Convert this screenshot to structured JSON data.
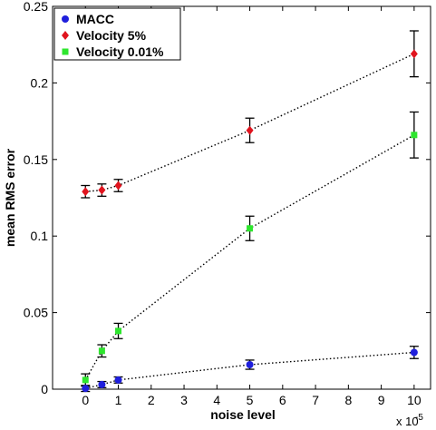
{
  "chart_data": {
    "type": "scatter",
    "xlabel": "noise level",
    "ylabel": "mean RMS error",
    "x_scale_note": "x 10",
    "x_scale_exponent": "-5",
    "xlim": [
      -1,
      10.5
    ],
    "ylim": [
      0,
      0.25
    ],
    "x_ticks": [
      0,
      1,
      2,
      3,
      4,
      5,
      6,
      7,
      8,
      9,
      10
    ],
    "x_tick_labels": [
      "0",
      "1",
      "2",
      "3",
      "4",
      "5",
      "6",
      "7",
      "8",
      "9",
      "10"
    ],
    "y_ticks": [
      0,
      0.05,
      0.1,
      0.15,
      0.2,
      0.25
    ],
    "y_tick_labels": [
      "0",
      "0.05",
      "0.1",
      "0.15",
      "0.2",
      "0.25"
    ],
    "grid": false,
    "legend_position": "top-left",
    "series": [
      {
        "name": "MACC",
        "marker": "circle",
        "color": "#1f1fdc",
        "x": [
          0,
          0.5,
          1,
          5,
          10
        ],
        "y": [
          0.0005,
          0.003,
          0.006,
          0.016,
          0.024
        ],
        "err": [
          0.002,
          0.002,
          0.002,
          0.003,
          0.004
        ]
      },
      {
        "name": "Velocity 5%",
        "marker": "diamond",
        "color": "#e0141e",
        "x": [
          0,
          0.5,
          1,
          5,
          10
        ],
        "y": [
          0.129,
          0.13,
          0.133,
          0.169,
          0.219
        ],
        "err": [
          0.004,
          0.004,
          0.004,
          0.008,
          0.015
        ]
      },
      {
        "name": "Velocity 0.01%",
        "marker": "square",
        "color": "#2ee62e",
        "x": [
          0,
          0.5,
          1,
          5,
          10
        ],
        "y": [
          0.006,
          0.025,
          0.038,
          0.105,
          0.166
        ],
        "err": [
          0.004,
          0.004,
          0.005,
          0.008,
          0.015
        ]
      }
    ]
  }
}
